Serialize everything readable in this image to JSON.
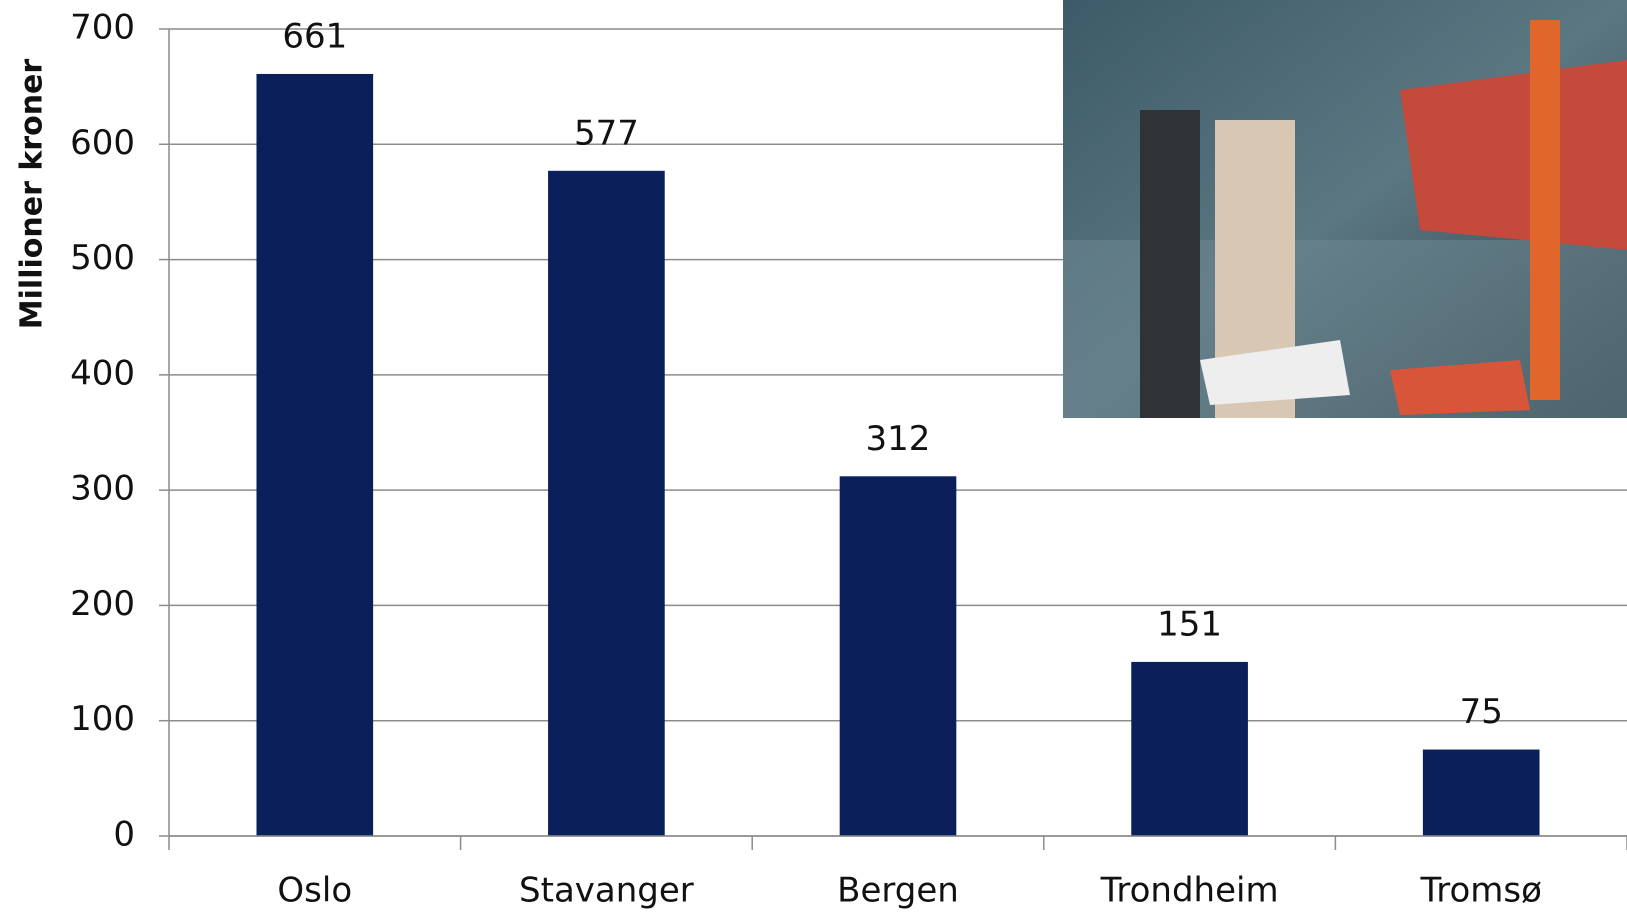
{
  "chart_data": {
    "type": "bar",
    "y_label": "Millioner kroner",
    "categories": [
      "Oslo",
      "Stavanger",
      "Bergen",
      "Trondheim",
      "Tromsø"
    ],
    "values": [
      661,
      577,
      312,
      151,
      75
    ],
    "color": "#0b1f5b",
    "ylim": [
      0,
      700
    ],
    "yticks": [
      0,
      100,
      200,
      300,
      400,
      500,
      600,
      700
    ],
    "grid": true
  }
}
